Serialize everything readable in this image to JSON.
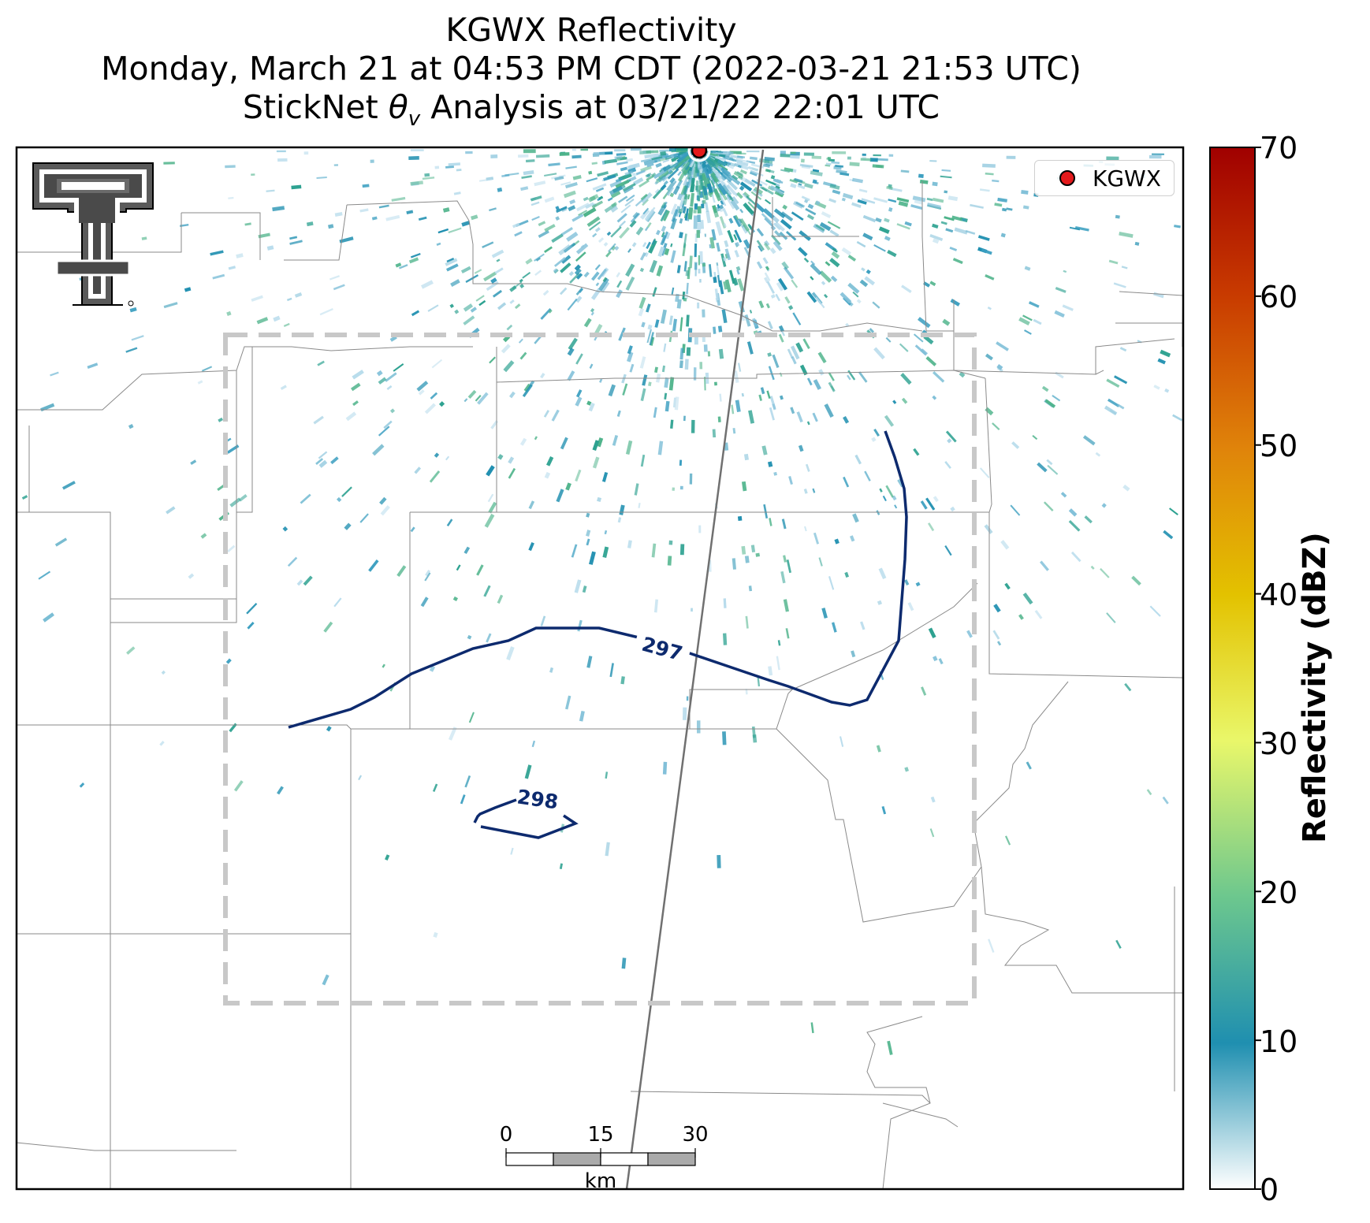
{
  "title": {
    "line1": "KGWX Reflectivity",
    "line2": "Monday, March 21 at 04:53 PM CDT (2022-03-21 21:53 UTC)",
    "line3_prefix": "StickNet ",
    "line3_symbol": "θ",
    "line3_subscript": "v",
    "line3_suffix": " Analysis at 03/21/22 22:01 UTC"
  },
  "legend": {
    "label": "KGWX"
  },
  "colorbar": {
    "label": "Reflectivity (dBZ)",
    "ticks": [
      "70",
      "60",
      "50",
      "40",
      "30",
      "20",
      "10",
      "0"
    ],
    "min": 0,
    "max": 70,
    "colors": [
      "#ffffff",
      "#1f8fb0",
      "#6cc78e",
      "#e9f76a",
      "#e3c200",
      "#e0840a",
      "#c83a00",
      "#a00000"
    ]
  },
  "contours": [
    {
      "label": "297"
    },
    {
      "label": "298"
    }
  ],
  "scale_bar": {
    "ticks": [
      "0",
      "15",
      "30"
    ],
    "unit": "km"
  },
  "colors": {
    "contour": "#0d2a6e",
    "analysis_box": "#c8c8c8",
    "radar_site": "#e31a1c",
    "reflectivity_low": "#1f8fb0"
  },
  "logo": {
    "name": "texas-tech-double-t-logo"
  }
}
